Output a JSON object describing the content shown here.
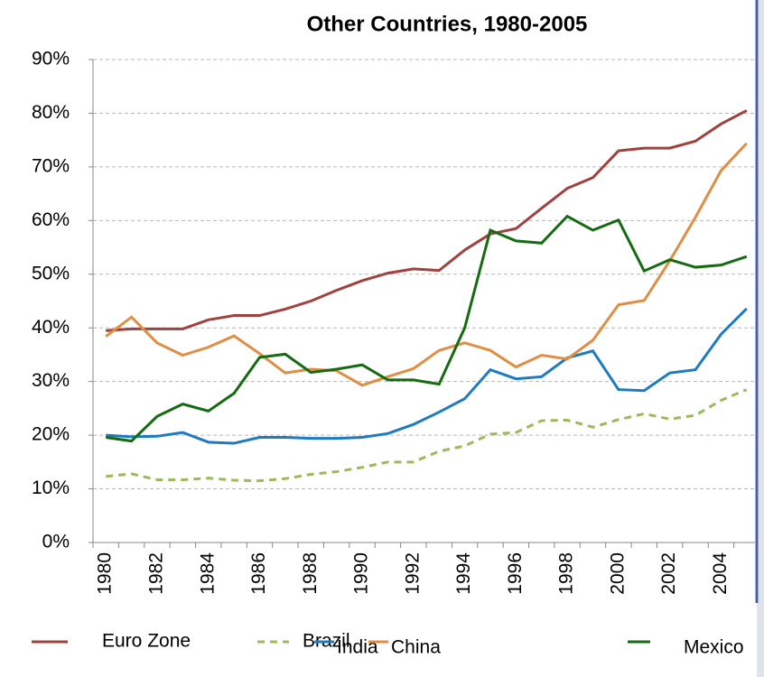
{
  "chart_data": {
    "type": "line",
    "title": "Other  Countries, 1980-2005",
    "categories": [
      "1980",
      null,
      "1982",
      null,
      "1984",
      null,
      "1986",
      null,
      "1988",
      null,
      "1990",
      null,
      "1992",
      null,
      "1994",
      null,
      "1996",
      null,
      "1998",
      null,
      "2000",
      null,
      "2002",
      null,
      "2004",
      null
    ],
    "series": [
      {
        "name": "Euro Zone",
        "color": "#a0413e",
        "dashed": false,
        "values": [
          39.5,
          39.8,
          39.8,
          39.8,
          41.5,
          42.3,
          42.3,
          43.5,
          45,
          47,
          48.8,
          50.2,
          51,
          50.7,
          54.5,
          57.5,
          58.5,
          62.3,
          66,
          68,
          73,
          73.5,
          73.5,
          74.8,
          78,
          80.5
        ]
      },
      {
        "name": "Brazil",
        "color": "#9bbb59",
        "dashed": true,
        "values": [
          12.3,
          12.8,
          11.7,
          11.7,
          12,
          11.6,
          11.5,
          11.9,
          12.7,
          13.2,
          14,
          15,
          15,
          17,
          18,
          20.2,
          20.5,
          22.7,
          22.8,
          21.5,
          22.9,
          24,
          23,
          23.7,
          26.5,
          28.5
        ]
      },
      {
        "name": "India",
        "color": "#1f7bc1",
        "dashed": false,
        "values": [
          20,
          19.7,
          19.8,
          20.5,
          18.7,
          18.5,
          19.6,
          19.6,
          19.4,
          19.4,
          19.6,
          20.3,
          22,
          24.3,
          26.8,
          32.2,
          30.5,
          30.9,
          34.4,
          35.7,
          28.5,
          28.3,
          31.6,
          32.2,
          38.8,
          43.6
        ]
      },
      {
        "name": "China",
        "color": "#e08e44",
        "dashed": false,
        "values": [
          38.4,
          42,
          37.2,
          34.9,
          36.4,
          38.5,
          35.2,
          31.6,
          32.3,
          32,
          29.3,
          30.9,
          32.4,
          35.8,
          37.2,
          35.8,
          32.7,
          34.9,
          34.2,
          37.7,
          44.3,
          45.1,
          52.5,
          60.6,
          69.3,
          74.4
        ]
      },
      {
        "name": "Mexico",
        "color": "#146b10",
        "dashed": false,
        "values": [
          19.6,
          18.9,
          23.5,
          25.8,
          24.5,
          27.8,
          34.5,
          35.1,
          31.7,
          32.3,
          33.1,
          30.3,
          30.3,
          29.5,
          40,
          58.2,
          56.2,
          55.8,
          60.8,
          58.2,
          60.1,
          50.6,
          52.7,
          51.3,
          51.7,
          53.3
        ]
      }
    ],
    "ylim": [
      0,
      90
    ],
    "yticks": [
      {
        "value": 0,
        "label": "0%"
      },
      {
        "value": 10,
        "label": "10%"
      },
      {
        "value": 20,
        "label": "20%"
      },
      {
        "value": 30,
        "label": "30%"
      },
      {
        "value": 40,
        "label": "40%"
      },
      {
        "value": 50,
        "label": "50%"
      },
      {
        "value": 60,
        "label": "60%"
      },
      {
        "value": 70,
        "label": "70%"
      },
      {
        "value": 80,
        "label": "80%"
      },
      {
        "value": 90,
        "label": "90%"
      }
    ],
    "grid": true
  }
}
